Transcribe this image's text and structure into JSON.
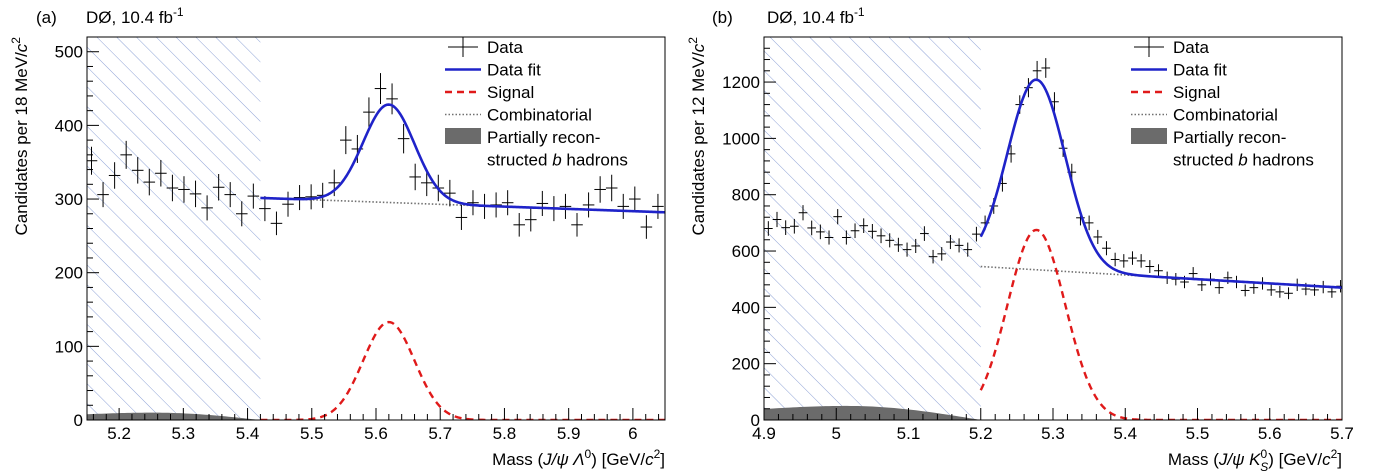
{
  "chart_data": [
    {
      "type": "scatter",
      "panel_label": "(a)",
      "experiment": "DØ, 10.4 fb",
      "experiment_sup": "-1",
      "ylabel_prefix": "Candidates per 18 MeV/",
      "ylabel_unit_c": "c",
      "ylabel_unit_sup": "2",
      "xlabel_prefix": "Mass (",
      "xlabel_J": "J",
      "xlabel_psi": "/ψ Λ",
      "xlabel_sup": "0",
      "xlabel_suffix": ") [GeV/",
      "xlabel_c": "c",
      "xlabel_c_sup": "2",
      "xlabel_close": "]",
      "xlim": [
        5.15,
        6.05
      ],
      "ylim": [
        0,
        520
      ],
      "xticks": [
        5.2,
        5.3,
        5.4,
        5.5,
        5.6,
        5.7,
        5.8,
        5.9,
        6.0
      ],
      "xtick_labels": [
        "5.2",
        "5.3",
        "5.4",
        "5.5",
        "5.6",
        "5.7",
        "5.8",
        "5.9",
        "6"
      ],
      "yticks": [
        0,
        100,
        200,
        300,
        400,
        500
      ],
      "ytick_labels": [
        "0",
        "100",
        "200",
        "300",
        "400",
        "500"
      ],
      "excluded_region": [
        5.15,
        5.42
      ],
      "partial_b_region": [
        5.15,
        5.42
      ],
      "partial_b_max": 10,
      "data_bin_halfwidth": 0.009,
      "data": {
        "x": [
          5.157,
          5.175,
          5.193,
          5.211,
          5.229,
          5.247,
          5.265,
          5.283,
          5.301,
          5.319,
          5.337,
          5.355,
          5.373,
          5.391,
          5.409,
          5.427,
          5.445,
          5.463,
          5.481,
          5.499,
          5.517,
          5.535,
          5.553,
          5.571,
          5.589,
          5.607,
          5.625,
          5.643,
          5.661,
          5.679,
          5.697,
          5.715,
          5.733,
          5.751,
          5.769,
          5.787,
          5.805,
          5.823,
          5.841,
          5.859,
          5.877,
          5.895,
          5.913,
          5.931,
          5.949,
          5.967,
          5.985,
          6.003,
          6.021,
          6.039
        ],
        "y": [
          352,
          306,
          332,
          360,
          339,
          323,
          335,
          315,
          313,
          307,
          288,
          316,
          306,
          280,
          304,
          287,
          267,
          293,
          302,
          303,
          305,
          322,
          380,
          368,
          418,
          450,
          436,
          382,
          330,
          322,
          315,
          308,
          275,
          295,
          290,
          292,
          295,
          265,
          272,
          294,
          287,
          290,
          265,
          292,
          313,
          315,
          290,
          300,
          262,
          290
        ],
        "err": [
          19,
          17,
          18,
          19,
          18,
          18,
          18,
          18,
          18,
          18,
          17,
          18,
          17,
          17,
          17,
          17,
          16,
          17,
          17,
          17,
          17,
          18,
          19,
          19,
          20,
          21,
          21,
          20,
          18,
          18,
          18,
          18,
          17,
          17,
          17,
          17,
          17,
          16,
          16,
          17,
          17,
          17,
          16,
          17,
          18,
          18,
          17,
          17,
          16,
          17
        ]
      },
      "fit": {
        "x_start": 5.42,
        "x_end": 6.05,
        "bg_a": 301.5,
        "bg_b": -31.0,
        "x_ref": 5.42,
        "sig_amp": 133,
        "sig_mu": 5.62,
        "sig_sigma": 0.04
      },
      "combinatorial": {
        "x_start": 5.42,
        "x_end": 6.05
      },
      "signal": {
        "x_start": 5.42,
        "x_end": 6.05
      },
      "legend": [
        {
          "kind": "data",
          "label": "Data"
        },
        {
          "kind": "fit",
          "label": "Data fit"
        },
        {
          "kind": "signal",
          "label": "Signal"
        },
        {
          "kind": "comb",
          "label": "Combinatorial"
        },
        {
          "kind": "partial",
          "label": "Partially recon-",
          "label2_prefix": "structed ",
          "label2_italic": "b",
          "label2_suffix": " hadrons"
        }
      ]
    },
    {
      "type": "scatter",
      "panel_label": "(b)",
      "experiment": "DØ, 10.4 fb",
      "experiment_sup": "-1",
      "ylabel_prefix": "Candidates per 12 MeV/",
      "ylabel_unit_c": "c",
      "ylabel_unit_sup": "2",
      "xlabel_prefix": "Mass (",
      "xlabel_J": "J",
      "xlabel_psi": "/ψ K",
      "xlabel_sup": "0",
      "xlabel_sub": "S",
      "xlabel_suffix": ") [GeV/",
      "xlabel_c": "c",
      "xlabel_c_sup": "2",
      "xlabel_close": "]",
      "xlim": [
        4.9,
        5.7
      ],
      "ylim": [
        0,
        1360
      ],
      "xticks": [
        4.9,
        5.0,
        5.1,
        5.2,
        5.3,
        5.4,
        5.5,
        5.6,
        5.7
      ],
      "xtick_labels": [
        "4.9",
        "5",
        "5.1",
        "5.2",
        "5.3",
        "5.4",
        "5.5",
        "5.6",
        "5.7"
      ],
      "yticks": [
        0,
        200,
        400,
        600,
        800,
        1000,
        1200
      ],
      "ytick_labels": [
        "0",
        "200",
        "400",
        "600",
        "800",
        "1000",
        "1200"
      ],
      "excluded_region": [
        4.9,
        5.2
      ],
      "partial_b_region": [
        4.9,
        5.2
      ],
      "partial_b_max": 50,
      "data_bin_halfwidth": 0.006,
      "data": {
        "x": [
          4.906,
          4.918,
          4.93,
          4.942,
          4.954,
          4.966,
          4.978,
          4.99,
          5.002,
          5.014,
          5.026,
          5.038,
          5.05,
          5.062,
          5.074,
          5.086,
          5.098,
          5.11,
          5.122,
          5.134,
          5.146,
          5.158,
          5.17,
          5.182,
          5.194,
          5.206,
          5.218,
          5.23,
          5.242,
          5.254,
          5.266,
          5.278,
          5.29,
          5.302,
          5.314,
          5.326,
          5.338,
          5.35,
          5.362,
          5.374,
          5.386,
          5.398,
          5.41,
          5.422,
          5.434,
          5.446,
          5.458,
          5.47,
          5.482,
          5.494,
          5.506,
          5.518,
          5.53,
          5.542,
          5.554,
          5.566,
          5.578,
          5.59,
          5.602,
          5.614,
          5.626,
          5.638,
          5.65,
          5.662,
          5.674,
          5.686,
          5.698
        ],
        "y": [
          680,
          712,
          683,
          688,
          736,
          682,
          668,
          648,
          722,
          648,
          672,
          690,
          670,
          654,
          638,
          622,
          605,
          618,
          662,
          580,
          590,
          632,
          620,
          605,
          660,
          700,
          760,
          840,
          945,
          1120,
          1180,
          1240,
          1250,
          1130,
          965,
          880,
          718,
          700,
          650,
          610,
          570,
          565,
          575,
          565,
          545,
          530,
          505,
          500,
          490,
          520,
          480,
          500,
          470,
          505,
          490,
          460,
          470,
          485,
          462,
          455,
          450,
          480,
          465,
          462,
          472,
          455,
          475
        ],
        "err": [
          26,
          27,
          26,
          26,
          27,
          26,
          26,
          25,
          27,
          25,
          26,
          26,
          26,
          26,
          25,
          25,
          25,
          25,
          26,
          24,
          24,
          25,
          25,
          25,
          26,
          26,
          28,
          29,
          31,
          33,
          34,
          35,
          35,
          34,
          31,
          30,
          27,
          26,
          25,
          25,
          24,
          24,
          24,
          24,
          23,
          23,
          22,
          22,
          22,
          23,
          22,
          22,
          22,
          22,
          22,
          21,
          22,
          22,
          21,
          21,
          21,
          22,
          22,
          21,
          22,
          21,
          22
        ]
      },
      "fit": {
        "x_start": 5.2,
        "x_end": 5.7,
        "bg_a": 545,
        "bg_b": -150,
        "x_ref": 5.2,
        "sig_amp": 675,
        "sig_mu": 5.277,
        "sig_sigma": 0.04
      },
      "combinatorial": {
        "x_start": 5.2,
        "x_end": 5.7
      },
      "signal": {
        "x_start": 5.2,
        "x_end": 5.7
      },
      "legend": [
        {
          "kind": "data",
          "label": "Data"
        },
        {
          "kind": "fit",
          "label": "Data fit"
        },
        {
          "kind": "signal",
          "label": "Signal"
        },
        {
          "kind": "comb",
          "label": "Combinatorial"
        },
        {
          "kind": "partial",
          "label": "Partially recon-",
          "label2_prefix": "structed ",
          "label2_italic": "b",
          "label2_suffix": " hadrons"
        }
      ]
    }
  ],
  "colors": {
    "fit": "#1f23c9",
    "signal": "#e01a1a",
    "combinatorial": "#707070",
    "partial": "#6b6b6b",
    "hatch": "#8fa3d6",
    "axis": "#000000",
    "data": "#000000"
  }
}
